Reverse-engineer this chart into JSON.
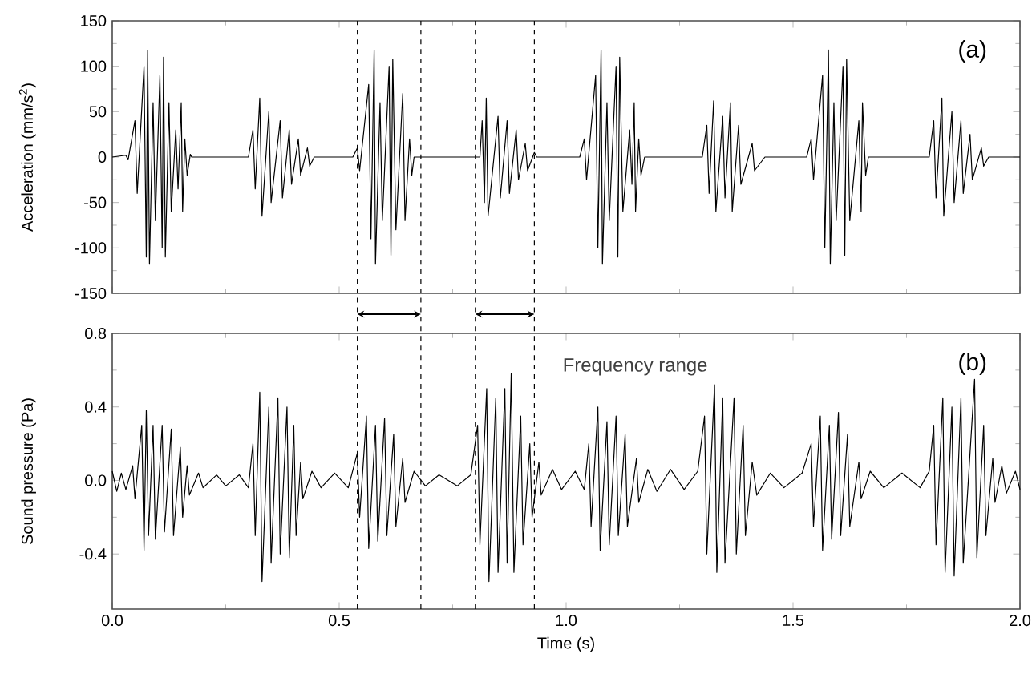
{
  "chart_data": [
    {
      "type": "line",
      "ylabel": "Acceleration (mm/s$^{2}$)",
      "xlim": [
        0,
        2
      ],
      "ylim": [
        -150,
        150
      ],
      "xticks": [
        0,
        0.5,
        1,
        1.5,
        2
      ],
      "yticks": [
        -150,
        -100,
        -50,
        0,
        50,
        100,
        150
      ],
      "tick_labels": "y",
      "annotations": [
        "(a)"
      ],
      "ref_lines": [
        {
          "axis": "x",
          "value": 0.54,
          "line_style": "dashed"
        },
        {
          "axis": "x",
          "value": 0.68,
          "line_style": "dashed"
        },
        {
          "axis": "x",
          "value": 0.8,
          "line_style": "dashed"
        },
        {
          "axis": "x",
          "value": 0.93,
          "line_style": "dashed"
        }
      ],
      "series": [
        {
          "color": "#000000",
          "x": [
            0,
            0.03,
            0.035,
            0.05,
            0.055,
            0.07,
            0.075,
            0.078,
            0.082,
            0.09,
            0.095,
            0.105,
            0.11,
            0.113,
            0.117,
            0.125,
            0.13,
            0.14,
            0.145,
            0.152,
            0.155,
            0.16,
            0.165,
            0.172,
            0.175,
            0.3,
            0.31,
            0.315,
            0.325,
            0.33,
            0.345,
            0.35,
            0.37,
            0.375,
            0.39,
            0.395,
            0.41,
            0.415,
            0.43,
            0.435,
            0.445,
            0.53,
            0.54,
            0.545,
            0.565,
            0.57,
            0.577,
            0.58,
            0.59,
            0.595,
            0.61,
            0.614,
            0.618,
            0.625,
            0.64,
            0.645,
            0.655,
            0.66,
            0.665,
            0.81,
            0.815,
            0.82,
            0.824,
            0.828,
            0.85,
            0.855,
            0.87,
            0.875,
            0.89,
            0.895,
            0.91,
            0.915,
            0.93,
            0.935,
            1.03,
            1.04,
            1.045,
            1.065,
            1.07,
            1.077,
            1.08,
            1.09,
            1.095,
            1.11,
            1.114,
            1.118,
            1.125,
            1.14,
            1.145,
            1.15,
            1.153,
            1.16,
            1.165,
            1.173,
            1.3,
            1.31,
            1.315,
            1.325,
            1.33,
            1.345,
            1.35,
            1.362,
            1.366,
            1.38,
            1.385,
            1.41,
            1.415,
            1.438,
            1.53,
            1.54,
            1.545,
            1.565,
            1.57,
            1.578,
            1.582,
            1.59,
            1.595,
            1.61,
            1.614,
            1.618,
            1.625,
            1.645,
            1.65,
            1.653,
            1.66,
            1.666,
            1.8,
            1.81,
            1.815,
            1.828,
            1.832,
            1.85,
            1.855,
            1.87,
            1.875,
            1.89,
            1.895,
            1.915,
            1.92,
            1.931,
            2.0
          ],
          "values": [
            0,
            2,
            -3,
            40,
            -40,
            100,
            -110,
            118,
            -118,
            60,
            -70,
            90,
            -100,
            110,
            -110,
            60,
            -60,
            30,
            -35,
            60,
            -60,
            20,
            -20,
            3,
            0,
            0,
            30,
            -35,
            65,
            -65,
            50,
            -50,
            40,
            -45,
            30,
            -30,
            20,
            -20,
            10,
            -10,
            0,
            0,
            10,
            -15,
            80,
            -90,
            118,
            -118,
            60,
            -70,
            100,
            -108,
            108,
            -80,
            70,
            -70,
            20,
            -20,
            0,
            0,
            40,
            -50,
            65,
            -65,
            45,
            -45,
            40,
            -40,
            30,
            -25,
            15,
            -15,
            5,
            0,
            0,
            20,
            -25,
            90,
            -100,
            118,
            -118,
            60,
            -70,
            100,
            -110,
            110,
            -60,
            30,
            -30,
            60,
            -60,
            20,
            -20,
            0,
            0,
            35,
            -40,
            62,
            -60,
            45,
            -45,
            60,
            -60,
            35,
            -30,
            15,
            -15,
            0,
            0,
            20,
            -25,
            90,
            -100,
            118,
            -118,
            60,
            -70,
            100,
            -108,
            108,
            -70,
            40,
            -60,
            60,
            -20,
            0,
            0,
            40,
            -45,
            65,
            -65,
            50,
            -50,
            40,
            -40,
            25,
            -25,
            10,
            -10,
            0,
            0
          ]
        }
      ]
    },
    {
      "type": "line",
      "xlabel": "Time (s)",
      "ylabel": "Sound pressure (Pa)",
      "xlim": [
        0,
        2
      ],
      "ylim": [
        -0.7,
        0.8
      ],
      "xticks": [
        {
          "value": 0,
          "label": "0.0"
        },
        0.5,
        {
          "value": 1,
          "label": "1.0"
        },
        1.5,
        {
          "value": 2,
          "label": "2.0"
        }
      ],
      "yticks": [
        -0.4,
        {
          "value": 0,
          "label": "0.0"
        },
        0.4,
        0.8
      ],
      "annotations": [
        "Frequency range",
        "(b)"
      ],
      "ref_lines": [
        {
          "axis": "x",
          "value": 0.54,
          "line_style": "dashed"
        },
        {
          "axis": "x",
          "value": 0.68,
          "line_style": "dashed"
        },
        {
          "axis": "x",
          "value": 0.8,
          "line_style": "dashed"
        },
        {
          "axis": "x",
          "value": 0.93,
          "line_style": "dashed"
        }
      ],
      "series": [
        {
          "color": "#000000",
          "x": [
            0,
            0.01,
            0.02,
            0.03,
            0.045,
            0.05,
            0.065,
            0.07,
            0.075,
            0.08,
            0.09,
            0.095,
            0.11,
            0.115,
            0.13,
            0.135,
            0.15,
            0.155,
            0.165,
            0.17,
            0.19,
            0.2,
            0.23,
            0.25,
            0.28,
            0.3,
            0.31,
            0.315,
            0.325,
            0.33,
            0.345,
            0.35,
            0.365,
            0.37,
            0.385,
            0.39,
            0.4,
            0.405,
            0.415,
            0.42,
            0.44,
            0.46,
            0.49,
            0.52,
            0.54,
            0.545,
            0.56,
            0.565,
            0.58,
            0.585,
            0.6,
            0.605,
            0.62,
            0.625,
            0.64,
            0.645,
            0.665,
            0.69,
            0.72,
            0.76,
            0.79,
            0.805,
            0.81,
            0.825,
            0.83,
            0.845,
            0.85,
            0.865,
            0.87,
            0.879,
            0.885,
            0.9,
            0.905,
            0.92,
            0.925,
            0.94,
            0.945,
            0.97,
            0.99,
            1.02,
            1.04,
            1.05,
            1.055,
            1.07,
            1.075,
            1.09,
            1.095,
            1.11,
            1.115,
            1.13,
            1.135,
            1.155,
            1.16,
            1.18,
            1.2,
            1.23,
            1.26,
            1.29,
            1.305,
            1.31,
            1.327,
            1.332,
            1.345,
            1.35,
            1.37,
            1.375,
            1.39,
            1.395,
            1.41,
            1.42,
            1.45,
            1.48,
            1.52,
            1.54,
            1.545,
            1.56,
            1.565,
            1.58,
            1.585,
            1.6,
            1.605,
            1.62,
            1.625,
            1.645,
            1.65,
            1.67,
            1.7,
            1.74,
            1.78,
            1.8,
            1.81,
            1.815,
            1.83,
            1.835,
            1.85,
            1.855,
            1.87,
            1.875,
            1.9,
            1.905,
            1.92,
            1.925,
            1.94,
            1.945,
            1.96,
            1.97,
            1.99,
            2.0
          ],
          "values": [
            0.05,
            -0.06,
            0.04,
            -0.05,
            0.08,
            -0.1,
            0.3,
            -0.38,
            0.38,
            -0.3,
            0.3,
            -0.32,
            0.3,
            -0.28,
            0.28,
            -0.3,
            0.18,
            -0.2,
            0.08,
            -0.08,
            0.04,
            -0.04,
            0.03,
            -0.03,
            0.03,
            -0.04,
            0.2,
            -0.3,
            0.48,
            -0.55,
            0.4,
            -0.45,
            0.45,
            -0.4,
            0.4,
            -0.42,
            0.3,
            -0.3,
            0.1,
            -0.1,
            0.05,
            -0.04,
            0.04,
            -0.04,
            0.15,
            -0.2,
            0.35,
            -0.37,
            0.3,
            -0.33,
            0.34,
            -0.3,
            0.25,
            -0.25,
            0.12,
            -0.12,
            0.05,
            -0.03,
            0.03,
            -0.03,
            0.03,
            0.3,
            -0.35,
            0.5,
            -0.55,
            0.45,
            -0.5,
            0.5,
            -0.45,
            0.58,
            -0.5,
            0.35,
            -0.35,
            0.2,
            -0.2,
            0.1,
            -0.08,
            0.06,
            -0.05,
            0.05,
            -0.05,
            0.2,
            -0.25,
            0.4,
            -0.38,
            0.32,
            -0.35,
            0.35,
            -0.3,
            0.25,
            -0.25,
            0.12,
            -0.12,
            0.06,
            -0.06,
            0.06,
            -0.05,
            0.05,
            0.35,
            -0.4,
            0.52,
            -0.5,
            0.45,
            -0.45,
            0.45,
            -0.4,
            0.3,
            -0.3,
            0.1,
            -0.08,
            0.04,
            -0.04,
            0.04,
            0.2,
            -0.25,
            0.35,
            -0.38,
            0.3,
            -0.32,
            0.37,
            -0.3,
            0.25,
            -0.25,
            0.1,
            -0.1,
            0.05,
            -0.04,
            0.04,
            -0.04,
            0.05,
            0.3,
            -0.35,
            0.45,
            -0.5,
            0.4,
            -0.52,
            0.45,
            -0.45,
            0.55,
            -0.42,
            0.3,
            -0.3,
            0.12,
            -0.12,
            0.08,
            -0.07,
            0.05,
            -0.05
          ]
        }
      ]
    }
  ]
}
